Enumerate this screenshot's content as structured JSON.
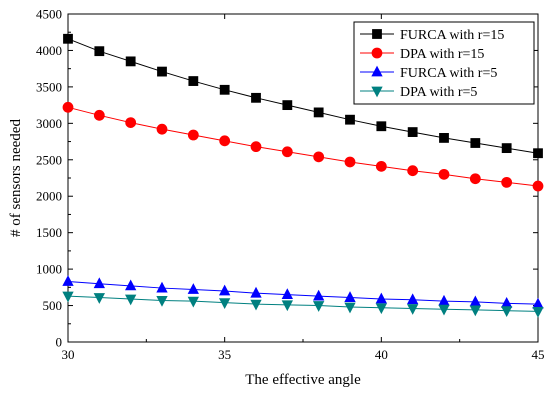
{
  "chart_data": {
    "type": "line",
    "title": "",
    "xlabel": "The effective angle",
    "ylabel": "# of sensors needed",
    "xlim": [
      30,
      45
    ],
    "ylim": [
      0,
      4500
    ],
    "xticks": [
      30,
      35,
      40,
      45
    ],
    "yticks": [
      0,
      500,
      1000,
      1500,
      2000,
      2500,
      3000,
      3500,
      4000,
      4500
    ],
    "grid": false,
    "legend_position": "top-right",
    "x": [
      30,
      31,
      32,
      33,
      34,
      35,
      36,
      37,
      38,
      39,
      40,
      41,
      42,
      43,
      44,
      45
    ],
    "series": [
      {
        "name": "FURCA with r=15",
        "marker": "square",
        "color": "#000000",
        "values": [
          4160,
          3990,
          3850,
          3710,
          3580,
          3460,
          3350,
          3250,
          3150,
          3050,
          2960,
          2880,
          2800,
          2730,
          2660,
          2590
        ]
      },
      {
        "name": "DPA with r=15",
        "marker": "circle",
        "color": "#ff0000",
        "values": [
          3220,
          3110,
          3010,
          2920,
          2840,
          2760,
          2680,
          2610,
          2540,
          2470,
          2410,
          2350,
          2300,
          2240,
          2190,
          2140
        ]
      },
      {
        "name": "FURCA with r=5",
        "marker": "triangle-up",
        "color": "#0000ff",
        "values": [
          830,
          800,
          770,
          740,
          720,
          700,
          670,
          650,
          630,
          610,
          590,
          580,
          560,
          550,
          530,
          520
        ]
      },
      {
        "name": "DPA with r=5",
        "marker": "triangle-down",
        "color": "#008080",
        "values": [
          630,
          610,
          590,
          570,
          560,
          540,
          520,
          510,
          500,
          480,
          470,
          460,
          450,
          440,
          430,
          420
        ]
      }
    ]
  }
}
